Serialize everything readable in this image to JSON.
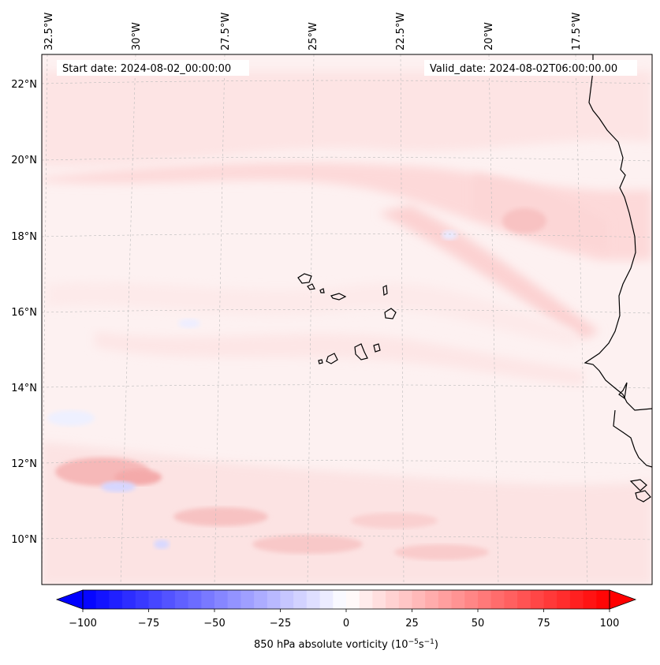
{
  "map": {
    "lon_labels": [
      "32.5°W",
      "30°W",
      "27.5°W",
      "25°W",
      "22.5°W",
      "20°W",
      "17.5°W"
    ],
    "lat_labels": [
      "22°N",
      "20°N",
      "18°N",
      "16°N",
      "14°N",
      "12°N",
      "10°N"
    ],
    "start_date": "Start date: 2024-08-02_00:00:00",
    "valid_date": "Valid_date: 2024-08-02T06:00:00.00"
  },
  "colorbar": {
    "ticks": [
      "−100",
      "−75",
      "−50",
      "−25",
      "0",
      "25",
      "50",
      "75",
      "100"
    ],
    "label": "850 hPa absolute vorticity (10",
    "unit_exp1": "−5",
    "unit_mid": "s",
    "unit_exp2": "−1",
    "unit_close": ")",
    "colormap": "bwr",
    "range": [
      -100,
      100
    ]
  },
  "colors": {
    "coast": "#000000",
    "grid": "#bbbbbb"
  }
}
